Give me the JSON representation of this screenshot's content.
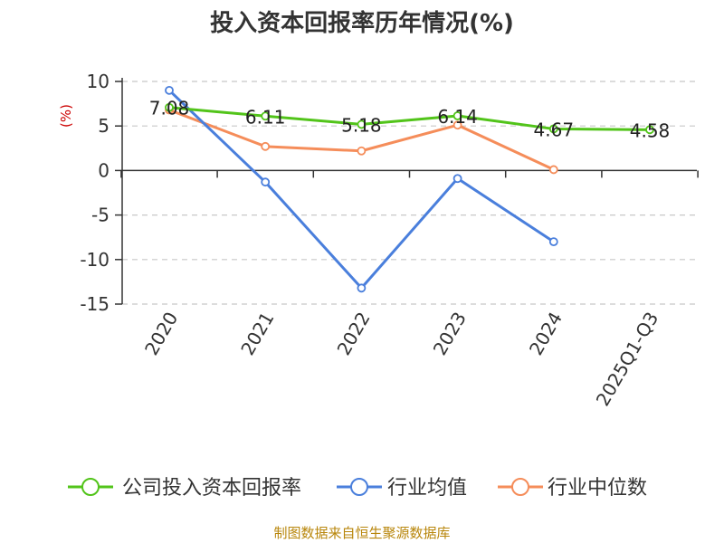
{
  "chart_data": {
    "type": "line",
    "title": "投入资本回报率历年情况(%)",
    "ylabel": "(%)",
    "categories": [
      "2020",
      "2021",
      "2022",
      "2023",
      "2024",
      "2025Q1-Q3"
    ],
    "ylim": [
      -15,
      10
    ],
    "yticks": [
      10,
      5,
      0,
      -5,
      -10,
      -15
    ],
    "grid": true,
    "legend_position": "bottom",
    "series": [
      {
        "name": "公司投入资本回报率",
        "values": [
          7.08,
          6.11,
          5.18,
          6.14,
          4.67,
          4.58
        ],
        "labels": [
          "7.08",
          "6.11",
          "5.18",
          "6.14",
          "4.67",
          "4.58"
        ],
        "color": "#52c41a"
      },
      {
        "name": "行业均值",
        "values": [
          9.0,
          -1.3,
          -13.2,
          -0.9,
          -8.0,
          null
        ],
        "color": "#4a7fdc"
      },
      {
        "name": "行业中位数",
        "values": [
          6.8,
          2.7,
          2.2,
          5.1,
          0.1,
          null
        ],
        "color": "#f58d5a"
      }
    ]
  },
  "source_text": "制图数据来自恒生聚源数据库"
}
